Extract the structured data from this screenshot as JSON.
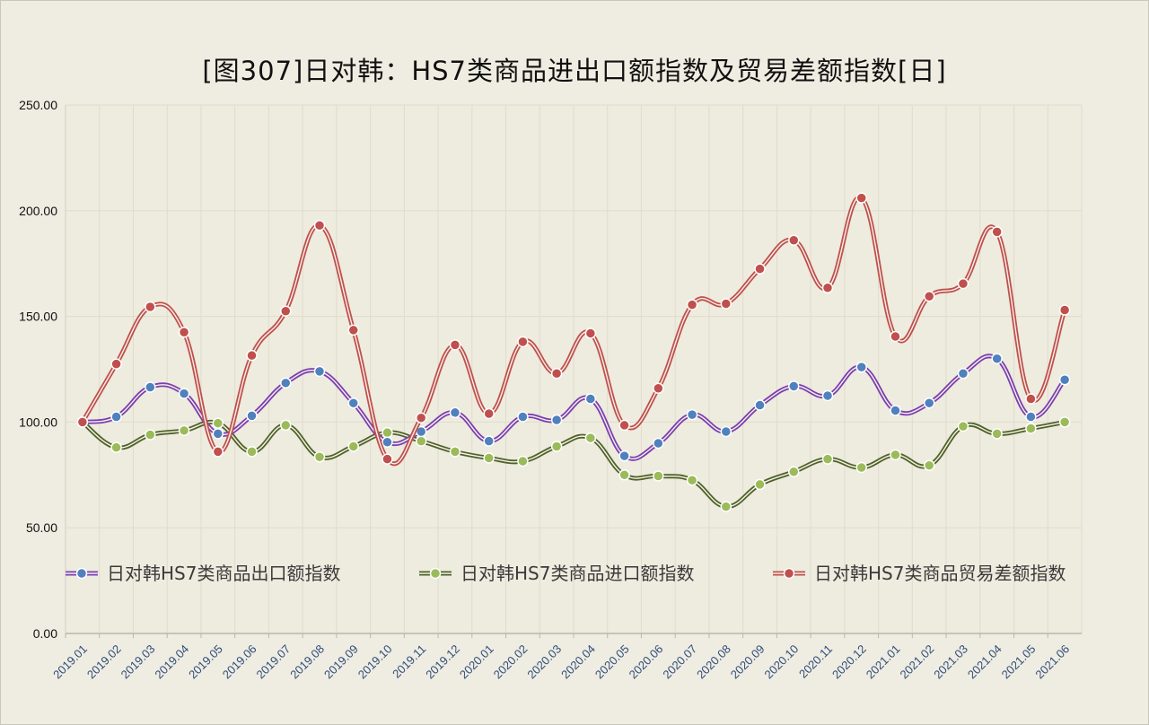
{
  "chart_data": {
    "type": "line",
    "title": "[图307]日对韩：HS7类商品进出口额指数及贸易差额指数[日]",
    "xlabel": "",
    "ylabel": "",
    "ylim": [
      0,
      250
    ],
    "yticks": [
      "0.00",
      "50.00",
      "100.00",
      "150.00",
      "200.00",
      "250.00"
    ],
    "grid": true,
    "legend_position": "middle",
    "categories": [
      "2019.01",
      "2019.02",
      "2019.03",
      "2019.04",
      "2019.05",
      "2019.06",
      "2019.07",
      "2019.08",
      "2019.09",
      "2019.10",
      "2019.11",
      "2019.12",
      "2020.01",
      "2020.02",
      "2020.03",
      "2020.04",
      "2020.05",
      "2020.06",
      "2020.07",
      "2020.08",
      "2020.09",
      "2020.10",
      "2020.11",
      "2020.12",
      "2021.01",
      "2021.02",
      "2021.03",
      "2021.04",
      "2021.05",
      "2021.06"
    ],
    "series": [
      {
        "name": "日对韩HS7类商品出口额指数",
        "line_color": "#7b3fb0",
        "marker_color": "#4f81bd",
        "values": [
          100,
          102.5,
          116.5,
          113.5,
          94.5,
          103,
          118.5,
          124,
          109,
          90.5,
          95.5,
          104.5,
          91,
          102.5,
          101,
          111,
          84,
          90,
          103.5,
          95.5,
          108,
          117,
          112.5,
          126,
          105.5,
          109,
          123,
          130,
          102.5,
          120
        ]
      },
      {
        "name": "日对韩HS7类商品进口额指数",
        "line_color": "#4f6228",
        "marker_color": "#9bbb59",
        "values": [
          100,
          88,
          94,
          96,
          99.5,
          86,
          98.5,
          83.5,
          88.5,
          95,
          91,
          86,
          83,
          81.5,
          88.5,
          92.5,
          75,
          74.5,
          72.5,
          60,
          70.5,
          76.5,
          82.5,
          78.5,
          84.5,
          79.5,
          98,
          94.5,
          97,
          100
        ]
      },
      {
        "name": "日对韩HS7类商品贸易差额指数",
        "line_color": "#c0504d",
        "marker_color": "#c0504d",
        "values": [
          100,
          127.5,
          154.5,
          142.5,
          86,
          131.5,
          152.5,
          193,
          143.5,
          82.5,
          102,
          136.5,
          104,
          138,
          123,
          142,
          98.5,
          116,
          155.5,
          156,
          172.5,
          186,
          163.5,
          206,
          140.5,
          159.5,
          165.5,
          190,
          111,
          153
        ]
      }
    ]
  }
}
